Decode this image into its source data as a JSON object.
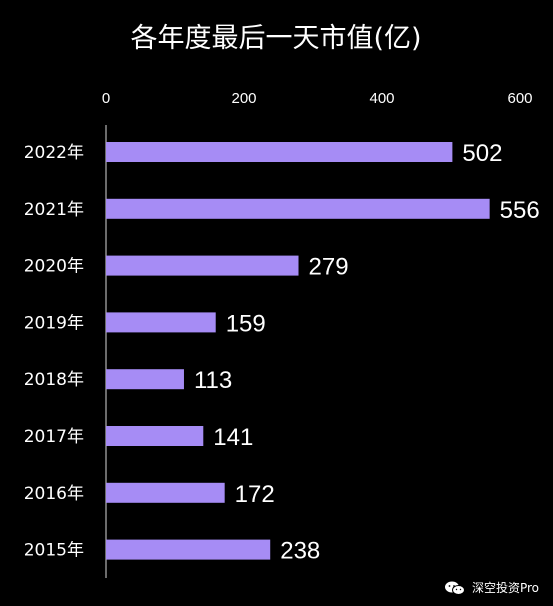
{
  "chart_data": {
    "type": "bar",
    "orientation": "horizontal",
    "title": "各年度最后一天市值(亿)",
    "categories": [
      "2022年",
      "2021年",
      "2020年",
      "2019年",
      "2018年",
      "2017年",
      "2016年",
      "2015年"
    ],
    "values": [
      502,
      556,
      279,
      159,
      113,
      141,
      172,
      238
    ],
    "xlim": [
      0,
      600
    ],
    "xticks": [
      "0",
      "200",
      "400",
      "600"
    ],
    "xlabel": "",
    "ylabel": "",
    "grid": false,
    "legend": "none",
    "bar_color": "#a68cf5",
    "background_color": "#000000",
    "axis_position": "top"
  },
  "watermark": {
    "icon": "wechat-icon",
    "text": "深空投资Pro"
  }
}
